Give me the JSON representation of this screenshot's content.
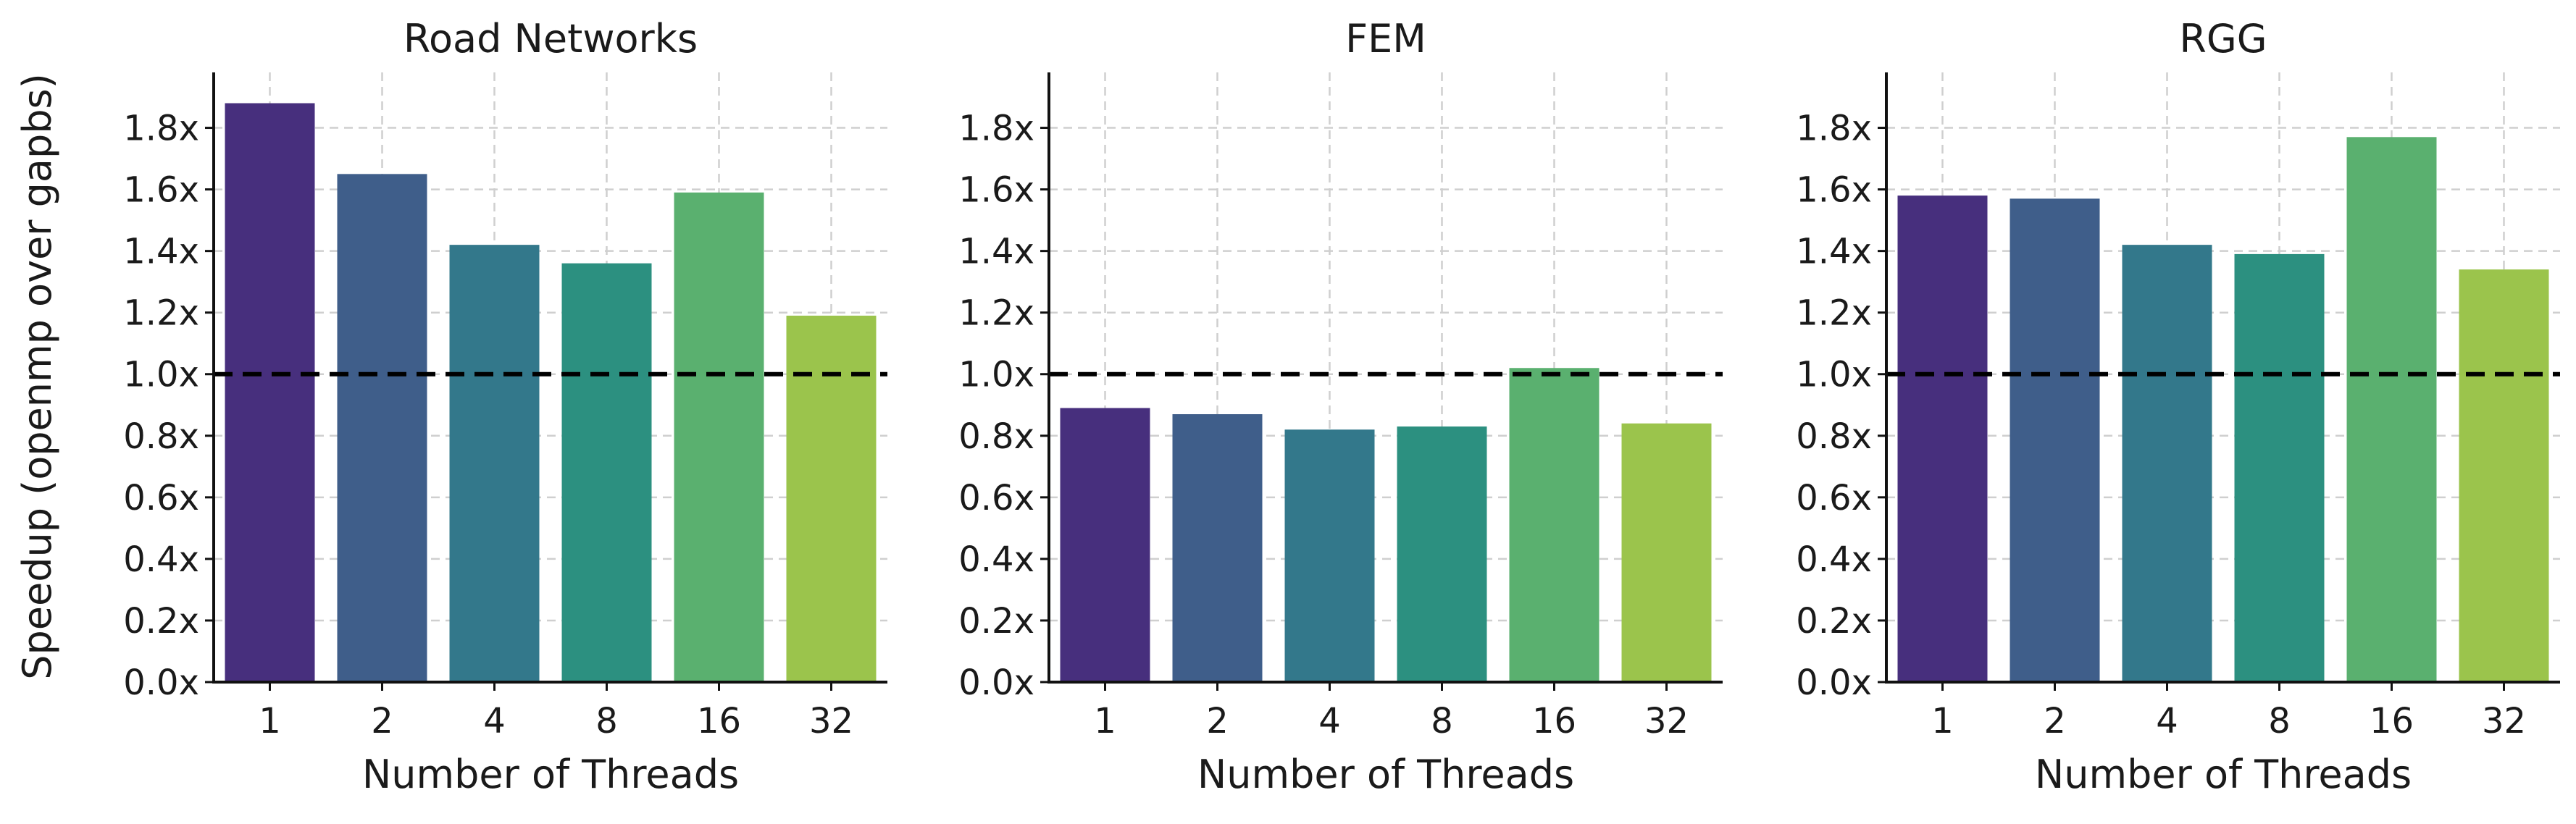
{
  "figure": {
    "ylabel": "Speedup (openmp over gapbs)",
    "xlabel": "Number of Threads",
    "reference_value": 1.0,
    "yticks": [
      "0.0x",
      "0.2x",
      "0.4x",
      "0.6x",
      "0.8x",
      "1.0x",
      "1.2x",
      "1.4x",
      "1.6x",
      "1.8x"
    ]
  },
  "chart_data": [
    {
      "type": "bar",
      "title": "Road Networks",
      "categories": [
        "1",
        "2",
        "4",
        "8",
        "16",
        "32"
      ],
      "values": [
        1.88,
        1.65,
        1.42,
        1.36,
        1.59,
        1.19
      ],
      "ylim": [
        0,
        1.98
      ],
      "grid": true,
      "colors": [
        "#472f7d",
        "#3f5e8a",
        "#33788b",
        "#2c9080",
        "#5ab06f",
        "#9bc44c"
      ]
    },
    {
      "type": "bar",
      "title": "FEM",
      "categories": [
        "1",
        "2",
        "4",
        "8",
        "16",
        "32"
      ],
      "values": [
        0.89,
        0.87,
        0.82,
        0.83,
        1.02,
        0.84
      ],
      "ylim": [
        0,
        1.98
      ],
      "grid": true,
      "colors": [
        "#472f7d",
        "#3f5e8a",
        "#33788b",
        "#2c9080",
        "#5ab06f",
        "#9bc44c"
      ]
    },
    {
      "type": "bar",
      "title": "RGG",
      "categories": [
        "1",
        "2",
        "4",
        "8",
        "16",
        "32"
      ],
      "values": [
        1.58,
        1.57,
        1.42,
        1.39,
        1.77,
        1.34
      ],
      "ylim": [
        0,
        1.98
      ],
      "grid": true,
      "colors": [
        "#472f7d",
        "#3f5e8a",
        "#33788b",
        "#2c9080",
        "#5ab06f",
        "#9bc44c"
      ]
    }
  ]
}
